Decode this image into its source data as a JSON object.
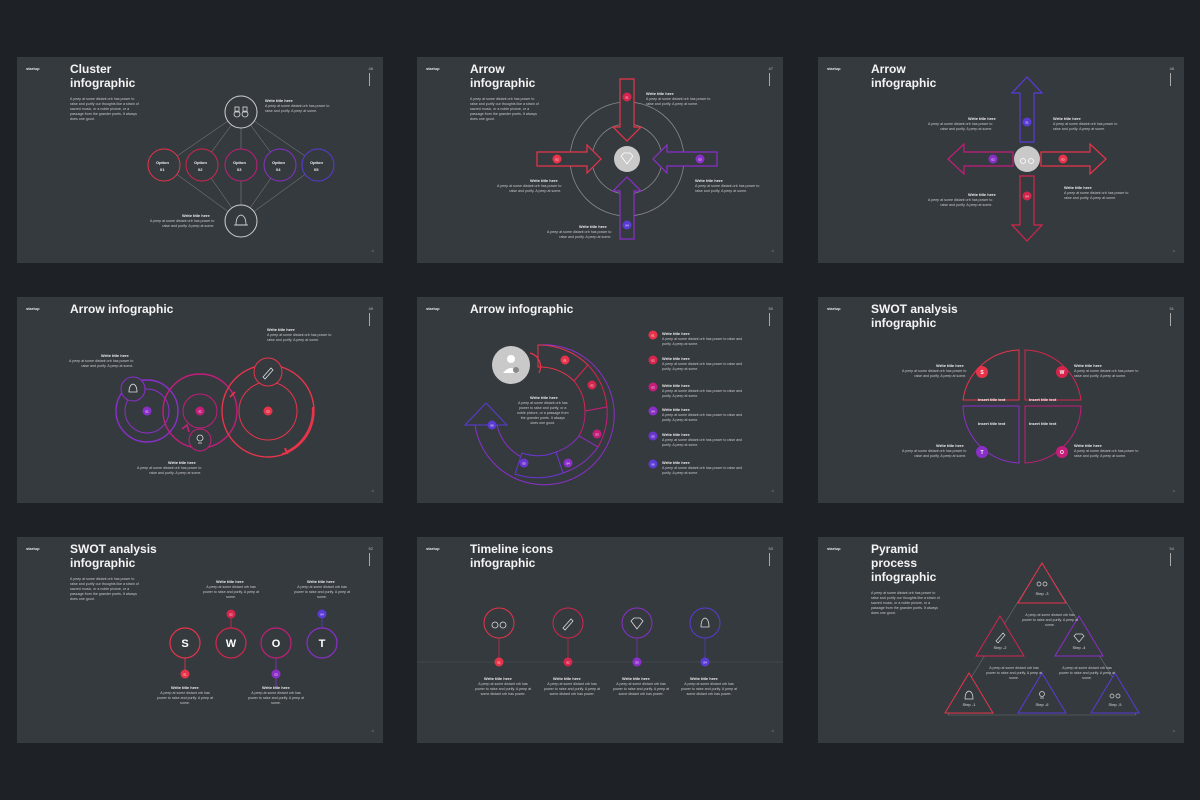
{
  "brand": "startup",
  "footer_glyph": "^",
  "colors": {
    "red": "#e8344a",
    "crimson": "#d4264c",
    "magenta": "#c41d7a",
    "purple": "#8b2fc9",
    "blue": "#5a3bd6",
    "grey": "#c9c9c9",
    "bg": "#353a3f",
    "page": "#1e2227"
  },
  "slides": {
    "s1": {
      "title": "Cluster\ninfographic",
      "page": "46",
      "desc": "A peep at some distant orb has power to\nraise and purify our thoughts like a strain of\nsacred music, or a noble picture, or a\npassage from the grander poets. It always\ndoes one good.",
      "t1": "Write title here",
      "d1": "A peep at some distant orb has power to\nraise and purify. A peep at some.",
      "t2": "Write title here",
      "d2": "A peep at some distant orb has power to\nraise and purify. A peep at some.",
      "options": [
        {
          "label": "Option",
          "num": "01"
        },
        {
          "label": "Option",
          "num": "02"
        },
        {
          "label": "Option",
          "num": "03"
        },
        {
          "label": "Option",
          "num": "04"
        },
        {
          "label": "Option",
          "num": "05"
        }
      ],
      "icon_top": "binoculars-icon",
      "icon_bottom": "bell-icon"
    },
    "s2": {
      "title": "Arrow\ninfographic",
      "page": "47",
      "t1": "Write title here",
      "d1": "A peep at some distant orb has power to\nraise and purify. A peep at some.",
      "t2": "Write title here",
      "d2": "A peep at some distant orb has power to\nraise and purify. A peep at some.",
      "t3": "Write title here",
      "d3": "A peep at some distant orb has power to\nraise and purify. A peep at some.",
      "t4": "Write title here",
      "d4": "A peep at some distant orb has power to\nraise and purify. A peep at some.",
      "desc": "A peep at some distant orb has power to\nraise and purify our thoughts like a strain of\nsacred music, or a noble picture, or a\npassage from the grander poets. It always\ndoes one good.",
      "badges": [
        "01",
        "02",
        "03",
        "04"
      ],
      "center_icon": "diamond-icon"
    },
    "s3": {
      "title": "Arrow\ninfographic",
      "page": "48",
      "t1": "Write title here",
      "d1": "A peep at some distant orb has power to\nraise and purify. A peep at some.",
      "t2": "Write title here",
      "d2": "A peep at some distant orb has power to\nraise and purify. A peep at some.",
      "t3": "Write title here",
      "d3": "A peep at some distant orb has power to\nraise and purify. A peep at some.",
      "t4": "Write title here",
      "d4": "A peep at some distant orb has power to\nraise and purify. A peep at some.",
      "badges": [
        "01",
        "02",
        "03",
        "04"
      ],
      "center_icon": "binoculars-icon"
    },
    "s4": {
      "title": "Arrow infographic",
      "page": "49",
      "t1": "Write title here",
      "d1": "A peep at some distant orb has power to\nraise and purify. A peep at some.",
      "t2": "Write title here",
      "d2": "A peep at some distant orb has power to\nraise and purify. A peep at some.",
      "t3": "Write title here",
      "d3": "A peep at some distant orb has power to\nraise and purify. A peep at some.",
      "badges": [
        "01",
        "02",
        "03"
      ],
      "icons": [
        "pencil-icon",
        "bell-icon",
        "bulb-icon"
      ]
    },
    "s5": {
      "title": "Arrow infographic",
      "page": "50",
      "center_title": "Write title here",
      "center_desc": "A peep at some distant orb has\npower to raise and purify, or a\nnoble picture, or a passage from\nthe grander poets. It always\ndoes one good.",
      "badges": [
        "01",
        "02",
        "03",
        "04",
        "05",
        "06",
        "07"
      ],
      "items": [
        {
          "num": "01",
          "title": "Write title here",
          "desc": "A peep at some distant orb has power to raise and\npurify. A peep at some."
        },
        {
          "num": "02",
          "title": "Write title here",
          "desc": "A peep at some distant orb has power to raise and\npurify. A peep at some."
        },
        {
          "num": "03",
          "title": "Write title here",
          "desc": "A peep at some distant orb has power to raise and\npurify. A peep at some."
        },
        {
          "num": "04",
          "title": "Write title here",
          "desc": "A peep at some distant orb has power to raise and\npurify. A peep at some."
        },
        {
          "num": "05",
          "title": "Write title here",
          "desc": "A peep at some distant orb has power to raise and\npurify. A peep at some."
        },
        {
          "num": "06",
          "title": "Write title here",
          "desc": "A peep at some distant orb has power to raise and\npurify. A peep at some."
        }
      ],
      "center_icon": "user-money-icon"
    },
    "s6": {
      "title": "SWOT analysis\ninfographic",
      "page": "51",
      "quads": [
        "Insert title text",
        "Insert title text",
        "Insert title text",
        "Insert title text"
      ],
      "letters": [
        "S",
        "W",
        "T",
        "O"
      ],
      "t1": "Write title here",
      "d1": "A peep at some distant orb has power to\nraise and purify. A peep at some.",
      "t2": "Write title here",
      "d2": "A peep at some distant orb has power to\nraise and purify. A peep at some.",
      "t3": "Write title here",
      "d3": "A peep at some distant orb has power to\nraise and purify. A peep at some.",
      "t4": "Write title here",
      "d4": "A peep at some distant orb has power to\nraise and purify. A peep at some."
    },
    "s7": {
      "title": "SWOT analysis\ninfographic",
      "page": "52",
      "desc": "A peep at some distant orb has power to\nraise and purify our thoughts like a strain of\nsacred music, or a noble picture, or a\npassage from the grander poets. It always\ndoes one good.",
      "letters": [
        "S",
        "W",
        "O",
        "T"
      ],
      "badges": [
        "01",
        "02",
        "03",
        "04"
      ],
      "t1": "Write title here",
      "d1": "A peep at some distant orb has\npower to raise and purify. A peep at\nsome.",
      "t2": "Write title here",
      "d2": "A peep at some distant orb has\npower to raise and purify. A peep at\nsome.",
      "t3": "Write title here",
      "d3": "A peep at some distant orb has\npower to raise and purify. A peep at\nsome.",
      "t4": "Write title here",
      "d4": "A peep at some distant orb has\npower to raise and purify. A peep at\nsome."
    },
    "s8": {
      "title": "Timeline icons\ninfographic",
      "page": "53",
      "items": [
        {
          "num": "01",
          "title": "Write title here",
          "desc": "A peep at some distant orb has\npower to raise and purify. A peep at\nsome distant orb has power."
        },
        {
          "num": "02",
          "title": "Write title here",
          "desc": "A peep at some distant orb has\npower to raise and purify. A peep at\nsome distant orb has power."
        },
        {
          "num": "03",
          "title": "Write title here",
          "desc": "A peep at some distant orb has\npower to raise and purify. A peep at\nsome distant orb has power."
        },
        {
          "num": "04",
          "title": "Write title here",
          "desc": "A peep at some distant orb has\npower to raise and purify. A peep at\nsome distant orb has power."
        }
      ],
      "icons": [
        "binoculars-icon",
        "pencil-icon",
        "diamond-icon",
        "bell-icon"
      ]
    },
    "s9": {
      "title": "Pyramid\nprocess\ninfographic",
      "page": "54",
      "desc": "A peep at some distant orb has power to\nraise and purify our thoughts like a strain of\nsacred music, or a noble picture, or a\npassage from the grander poets. It always\ndoes one good.",
      "steps": [
        "Step -3",
        "Step -2",
        "Step -4",
        "Step -1",
        "Step -6",
        "Step -5"
      ],
      "d1": "A peep at some distant orb has\npower to raise and purify. A peep at\nsome.",
      "d2": "A peep at some distant orb has\npower to raise and purify. A peep at\nsome.",
      "d3": "A peep at some distant orb has\npower to raise and purify. A peep at\nsome."
    }
  }
}
